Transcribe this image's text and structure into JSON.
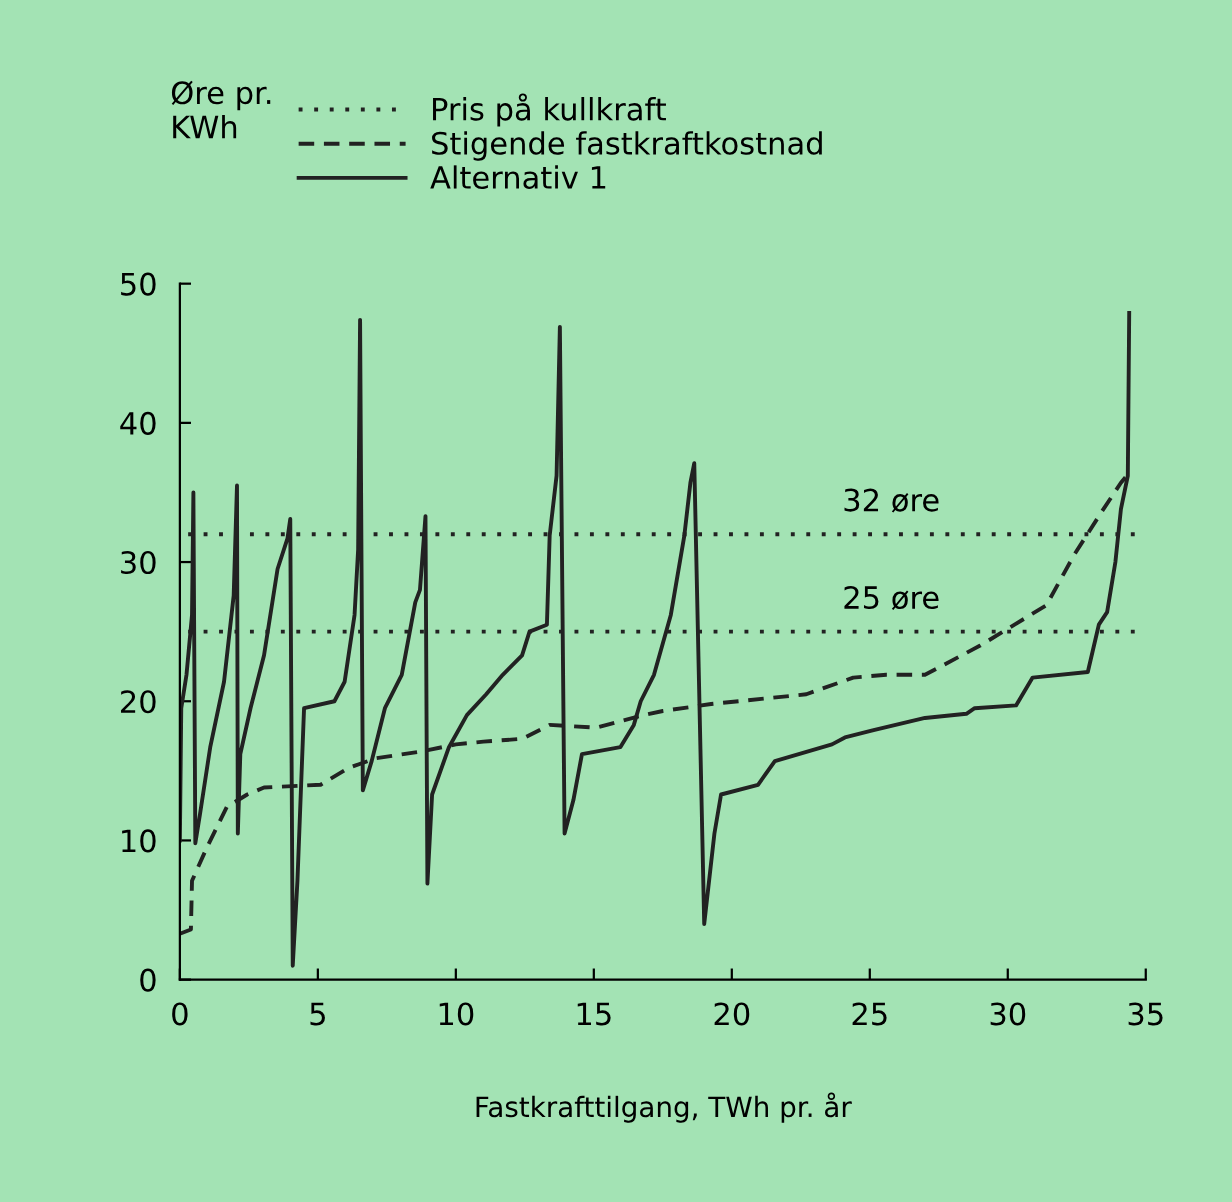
{
  "chart_data": {
    "type": "line",
    "xlabel": "Fastkrafttilgang, TWh pr. år",
    "ylabel": "Øre pr.\nKWh",
    "xlim": [
      0,
      35
    ],
    "ylim": [
      0,
      50
    ],
    "xticks": [
      0,
      5,
      10,
      15,
      20,
      25,
      30,
      35
    ],
    "yticks": [
      0,
      10,
      20,
      30,
      40,
      50
    ],
    "grid": false,
    "legend": "top",
    "series": [
      {
        "name": "Pris på kullkraft",
        "color": "#222222",
        "line_style": "dotted",
        "x": [
          0.3,
          34.6
        ],
        "values": [
          32,
          32
        ]
      },
      {
        "color": "#222222",
        "line_style": "dotted",
        "x": [
          0.3,
          34.6
        ],
        "values": [
          25,
          25
        ]
      },
      {
        "name": "Stigende fastkraftkostnad",
        "color": "#222222",
        "line_style": "dashed",
        "x": [
          0,
          0.4,
          0.44,
          0.98,
          1.7,
          2.44,
          3.05,
          5.1,
          6.1,
          7.1,
          8.77,
          10.0,
          11.0,
          12.4,
          13.4,
          15.1,
          16.8,
          17.5,
          19.25,
          22.7,
          24.4,
          25.6,
          27.0,
          29.0,
          31.4,
          32.4,
          33.4,
          34.1,
          34.4
        ],
        "values": [
          3.3,
          3.6,
          7.1,
          9.5,
          12.4,
          13.3,
          13.8,
          14.0,
          15.2,
          15.9,
          16.4,
          16.9,
          17.1,
          17.3,
          18.3,
          18.1,
          19.0,
          19.3,
          19.8,
          20.5,
          21.7,
          21.9,
          21.9,
          24.0,
          26.9,
          30.5,
          33.6,
          35.7,
          36.4
        ]
      },
      {
        "name": "Alternativ 1",
        "color": "#222222",
        "line_style": "solid",
        "x": [
          0,
          0.05,
          0.24,
          0.44,
          0.49,
          0.56,
          0.73,
          1.1,
          1.6,
          1.95,
          2.07,
          2.1,
          2.19,
          2.56,
          3.05,
          3.54,
          3.9,
          4.0,
          4.09,
          4.26,
          4.5,
          5.6,
          5.97,
          6.33,
          6.46,
          6.53,
          6.63,
          6.95,
          7.43,
          8.04,
          8.53,
          8.7,
          8.9,
          8.97,
          9.14,
          9.75,
          10.4,
          11.1,
          11.7,
          12.4,
          12.67,
          13.3,
          13.4,
          13.65,
          13.77,
          13.94,
          14.26,
          14.57,
          15.96,
          16.45,
          16.7,
          17.18,
          17.79,
          18.28,
          18.5,
          18.64,
          19.0,
          19.37,
          19.61,
          20.95,
          21.56,
          23.63,
          24.1,
          25.1,
          27.0,
          28.5,
          28.8,
          30.3,
          30.9,
          32.9,
          33.3,
          33.6,
          33.9,
          34.1,
          34.35,
          34.4
        ],
        "values": [
          10,
          19.5,
          21.9,
          26.2,
          35,
          9.8,
          11.9,
          16.7,
          21.4,
          27.6,
          35.5,
          10.5,
          16.2,
          19.5,
          23.3,
          29.5,
          31.7,
          33.1,
          1,
          7.1,
          19.5,
          20,
          21.4,
          26.2,
          30.9,
          47.4,
          13.6,
          15.7,
          19.5,
          21.9,
          27.1,
          28,
          33.3,
          6.9,
          13.3,
          16.7,
          19,
          20.5,
          21.9,
          23.3,
          25,
          25.5,
          31.9,
          36.2,
          46.9,
          10.5,
          12.9,
          16.2,
          16.7,
          18.3,
          20,
          21.9,
          26.2,
          31.9,
          35.7,
          37.1,
          4,
          10.5,
          13.3,
          14,
          15.7,
          16.9,
          17.4,
          17.9,
          18.8,
          19.1,
          19.5,
          19.7,
          21.7,
          22.1,
          25.5,
          26.4,
          30,
          33.8,
          36.2,
          47.9
        ]
      }
    ],
    "annotations": [
      {
        "text": "32 øre",
        "x": 24,
        "y": 32
      },
      {
        "text": "25 øre",
        "x": 24,
        "y": 25
      }
    ]
  }
}
